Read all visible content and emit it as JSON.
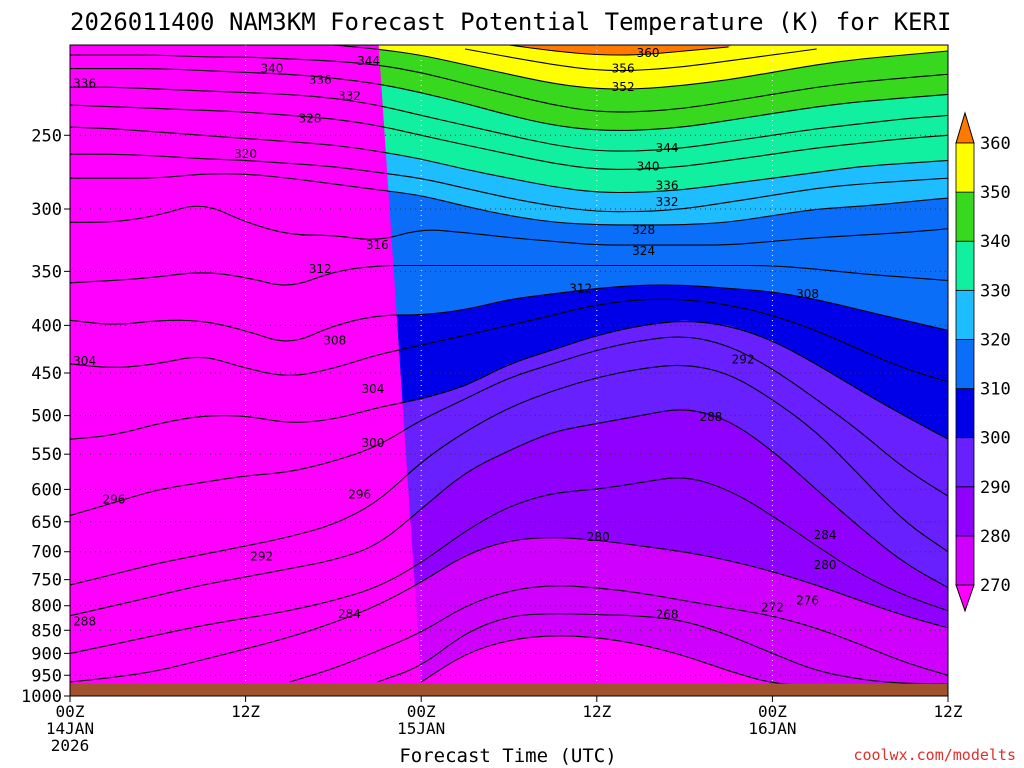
{
  "chart_data": {
    "type": "heatmap",
    "title": "2026011400 NAM3KM Forecast Potential Temperature (K) for KERI",
    "xlabel": "Forecast Time (UTC)",
    "ylabel": "",
    "credit": "coolwx.com/modelts",
    "y_scale": "log-pressure",
    "ylim": [
      1000,
      200
    ],
    "y_ticks": [
      250,
      300,
      350,
      400,
      450,
      500,
      550,
      600,
      650,
      700,
      750,
      800,
      850,
      900,
      950,
      1000
    ],
    "x_range_hours": [
      0,
      60
    ],
    "x_ticks": [
      {
        "hour": 0,
        "line1": "00Z",
        "line2": "14JAN",
        "line3": "2026"
      },
      {
        "hour": 12,
        "line1": "12Z",
        "line2": "",
        "line3": ""
      },
      {
        "hour": 24,
        "line1": "00Z",
        "line2": "15JAN",
        "line3": ""
      },
      {
        "hour": 36,
        "line1": "12Z",
        "line2": "",
        "line3": ""
      },
      {
        "hour": 48,
        "line1": "00Z",
        "line2": "16JAN",
        "line3": ""
      },
      {
        "hour": 60,
        "line1": "12Z",
        "line2": "",
        "line3": ""
      }
    ],
    "colorbar": {
      "levels": [
        270,
        280,
        290,
        300,
        310,
        320,
        330,
        340,
        350,
        360
      ],
      "colors": [
        "#ff00ff",
        "#d000ff",
        "#9000ff",
        "#6820ff",
        "#0000e8",
        "#0a6ef8",
        "#1ebdff",
        "#10f0a0",
        "#38d81e",
        "#ffff00",
        "#ffb000",
        "#ff7800"
      ],
      "under_color": "#ff00ff",
      "over_color": "#ff7800"
    },
    "ground_color": "#a0522d",
    "ground_pressure": 970,
    "grid": true,
    "contour_interval": 4,
    "isentropes": [
      {
        "theta": 268,
        "p": [
          null,
          null,
          null,
          null,
          null,
          null,
          null,
          null,
          966,
          900,
          870,
          860,
          865,
          880,
          905,
          940,
          970,
          975,
          975,
          975,
          975
        ]
      },
      {
        "theta": 272,
        "p": [
          null,
          null,
          null,
          null,
          null,
          null,
          null,
          966,
          930,
          855,
          820,
          815,
          818,
          820,
          830,
          860,
          900,
          940,
          960,
          970,
          970
        ]
      },
      {
        "theta": 276,
        "p": [
          null,
          null,
          null,
          null,
          null,
          966,
          935,
          895,
          855,
          800,
          770,
          760,
          765,
          775,
          790,
          805,
          820,
          845,
          880,
          920,
          950
        ]
      },
      {
        "theta": 280,
        "p": [
          966,
          955,
          940,
          915,
          890,
          865,
          835,
          800,
          755,
          705,
          680,
          675,
          680,
          690,
          700,
          715,
          735,
          760,
          790,
          820,
          845
        ]
      },
      {
        "theta": 284,
        "p": [
          900,
          880,
          860,
          840,
          825,
          810,
          790,
          765,
          720,
          665,
          625,
          605,
          600,
          590,
          580,
          600,
          640,
          690,
          740,
          780,
          810
        ]
      },
      {
        "theta": 288,
        "p": [
          820,
          800,
          780,
          760,
          745,
          730,
          715,
          690,
          630,
          575,
          545,
          520,
          510,
          500,
          490,
          505,
          545,
          600,
          660,
          720,
          765
        ]
      },
      {
        "theta": 292,
        "p": [
          760,
          740,
          720,
          705,
          690,
          675,
          655,
          620,
          560,
          520,
          490,
          470,
          455,
          445,
          440,
          450,
          480,
          520,
          580,
          650,
          700
        ]
      },
      {
        "theta": 296,
        "p": [
          640,
          620,
          600,
          590,
          580,
          575,
          560,
          540,
          505,
          480,
          455,
          440,
          425,
          415,
          410,
          420,
          445,
          480,
          520,
          570,
          610
        ]
      },
      {
        "theta": 300,
        "p": [
          530,
          525,
          510,
          500,
          500,
          510,
          505,
          490,
          480,
          465,
          440,
          425,
          410,
          400,
          395,
          400,
          415,
          440,
          470,
          500,
          530
        ]
      },
      {
        "theta": 304,
        "p": [
          440,
          445,
          440,
          430,
          445,
          455,
          445,
          430,
          420,
          410,
          400,
          390,
          380,
          375,
          375,
          380,
          390,
          405,
          425,
          445,
          460
        ]
      },
      {
        "theta": 308,
        "p": [
          395,
          400,
          395,
          395,
          405,
          420,
          400,
          390,
          390,
          385,
          375,
          370,
          365,
          362,
          362,
          365,
          368,
          375,
          385,
          395,
          405
        ]
      },
      {
        "theta": 312,
        "p": [
          360,
          358,
          355,
          350,
          355,
          365,
          350,
          345,
          345,
          345,
          345,
          345,
          345,
          345,
          345,
          345,
          345,
          348,
          352,
          355,
          358
        ]
      },
      {
        "theta": 316,
        "p": [
          310,
          310,
          305,
          295,
          310,
          320,
          320,
          325,
          315,
          318,
          322,
          325,
          328,
          328,
          328,
          328,
          325,
          322,
          320,
          318,
          315
        ]
      },
      {
        "theta": 320,
        "p": [
          278,
          278,
          278,
          275,
          275,
          278,
          282,
          286,
          290,
          298,
          305,
          310,
          312,
          312,
          312,
          310,
          305,
          300,
          298,
          295,
          292
        ]
      },
      {
        "theta": 324,
        "p": [
          262,
          262,
          263,
          265,
          266,
          268,
          270,
          274,
          278,
          285,
          292,
          298,
          302,
          302,
          300,
          295,
          290,
          285,
          282,
          280,
          278
        ]
      },
      {
        "theta": 328,
        "p": [
          245,
          246,
          248,
          250,
          252,
          254,
          256,
          260,
          265,
          272,
          278,
          284,
          288,
          288,
          286,
          282,
          278,
          274,
          270,
          268,
          266
        ]
      },
      {
        "theta": 332,
        "p": [
          232,
          233,
          234,
          235,
          236,
          238,
          240,
          244,
          250,
          256,
          262,
          268,
          272,
          272,
          270,
          266,
          262,
          258,
          255,
          252,
          250
        ]
      },
      {
        "theta": 336,
        "p": [
          222,
          222,
          223,
          224,
          225,
          226,
          228,
          232,
          238,
          244,
          250,
          256,
          260,
          260,
          258,
          254,
          250,
          246,
          243,
          240,
          238
        ]
      },
      {
        "theta": 340,
        "p": [
          212,
          212,
          212,
          213,
          214,
          215,
          217,
          220,
          225,
          231,
          238,
          244,
          247,
          247,
          245,
          241,
          237,
          233,
          230,
          228,
          226
        ]
      },
      {
        "theta": 344,
        "p": [
          205,
          205,
          205,
          206,
          206,
          207,
          208,
          210,
          214,
          220,
          226,
          232,
          236,
          236,
          234,
          230,
          226,
          222,
          219,
          217,
          215
        ]
      },
      {
        "theta": 348,
        "p": [
          null,
          null,
          null,
          null,
          null,
          null,
          200,
          202,
          205,
          210,
          215,
          220,
          223,
          223,
          221,
          218,
          214,
          210,
          207,
          205,
          203
        ]
      },
      {
        "theta": 352,
        "p": [
          null,
          null,
          null,
          null,
          null,
          null,
          null,
          null,
          null,
          202,
          206,
          210,
          213,
          213,
          211,
          208,
          205,
          202,
          null,
          null,
          null
        ]
      },
      {
        "theta": 356,
        "p": [
          null,
          null,
          null,
          null,
          null,
          null,
          null,
          null,
          null,
          null,
          200,
          203,
          205,
          205,
          203,
          201,
          null,
          null,
          null,
          null,
          null
        ]
      }
    ],
    "contour_labels": [
      {
        "text": "360",
        "hour": 39.5,
        "p": 204
      },
      {
        "text": "356",
        "hour": 37.8,
        "p": 212
      },
      {
        "text": "352",
        "hour": 37.8,
        "p": 222
      },
      {
        "text": "344",
        "hour": 20.4,
        "p": 208
      },
      {
        "text": "340",
        "hour": 13.8,
        "p": 212
      },
      {
        "text": "336",
        "hour": 1.0,
        "p": 220
      },
      {
        "text": "336",
        "hour": 17.1,
        "p": 218
      },
      {
        "text": "332",
        "hour": 19.1,
        "p": 227
      },
      {
        "text": "328",
        "hour": 16.4,
        "p": 240
      },
      {
        "text": "320",
        "hour": 12.0,
        "p": 262
      },
      {
        "text": "344",
        "hour": 40.8,
        "p": 258
      },
      {
        "text": "340",
        "hour": 39.5,
        "p": 270
      },
      {
        "text": "336",
        "hour": 40.8,
        "p": 283
      },
      {
        "text": "332",
        "hour": 40.8,
        "p": 295
      },
      {
        "text": "328",
        "hour": 39.2,
        "p": 316
      },
      {
        "text": "324",
        "hour": 39.2,
        "p": 333
      },
      {
        "text": "316",
        "hour": 21.0,
        "p": 328
      },
      {
        "text": "312",
        "hour": 17.1,
        "p": 348
      },
      {
        "text": "312",
        "hour": 34.9,
        "p": 365
      },
      {
        "text": "308",
        "hour": 50.4,
        "p": 370
      },
      {
        "text": "308",
        "hour": 18.1,
        "p": 415
      },
      {
        "text": "304",
        "hour": 1.0,
        "p": 437
      },
      {
        "text": "304",
        "hour": 20.7,
        "p": 468
      },
      {
        "text": "300",
        "hour": 20.7,
        "p": 535
      },
      {
        "text": "296",
        "hour": 3.0,
        "p": 615
      },
      {
        "text": "296",
        "hour": 19.8,
        "p": 608
      },
      {
        "text": "292",
        "hour": 13.1,
        "p": 708
      },
      {
        "text": "292",
        "hour": 46.0,
        "p": 435
      },
      {
        "text": "288",
        "hour": 1.0,
        "p": 832
      },
      {
        "text": "288",
        "hour": 43.8,
        "p": 502
      },
      {
        "text": "284",
        "hour": 19.1,
        "p": 817
      },
      {
        "text": "284",
        "hour": 51.6,
        "p": 672
      },
      {
        "text": "280",
        "hour": 36.1,
        "p": 675
      },
      {
        "text": "280",
        "hour": 51.6,
        "p": 723
      },
      {
        "text": "276",
        "hour": 50.4,
        "p": 790
      },
      {
        "text": "272",
        "hour": 48.0,
        "p": 803
      },
      {
        "text": "268",
        "hour": 40.8,
        "p": 818
      }
    ]
  }
}
